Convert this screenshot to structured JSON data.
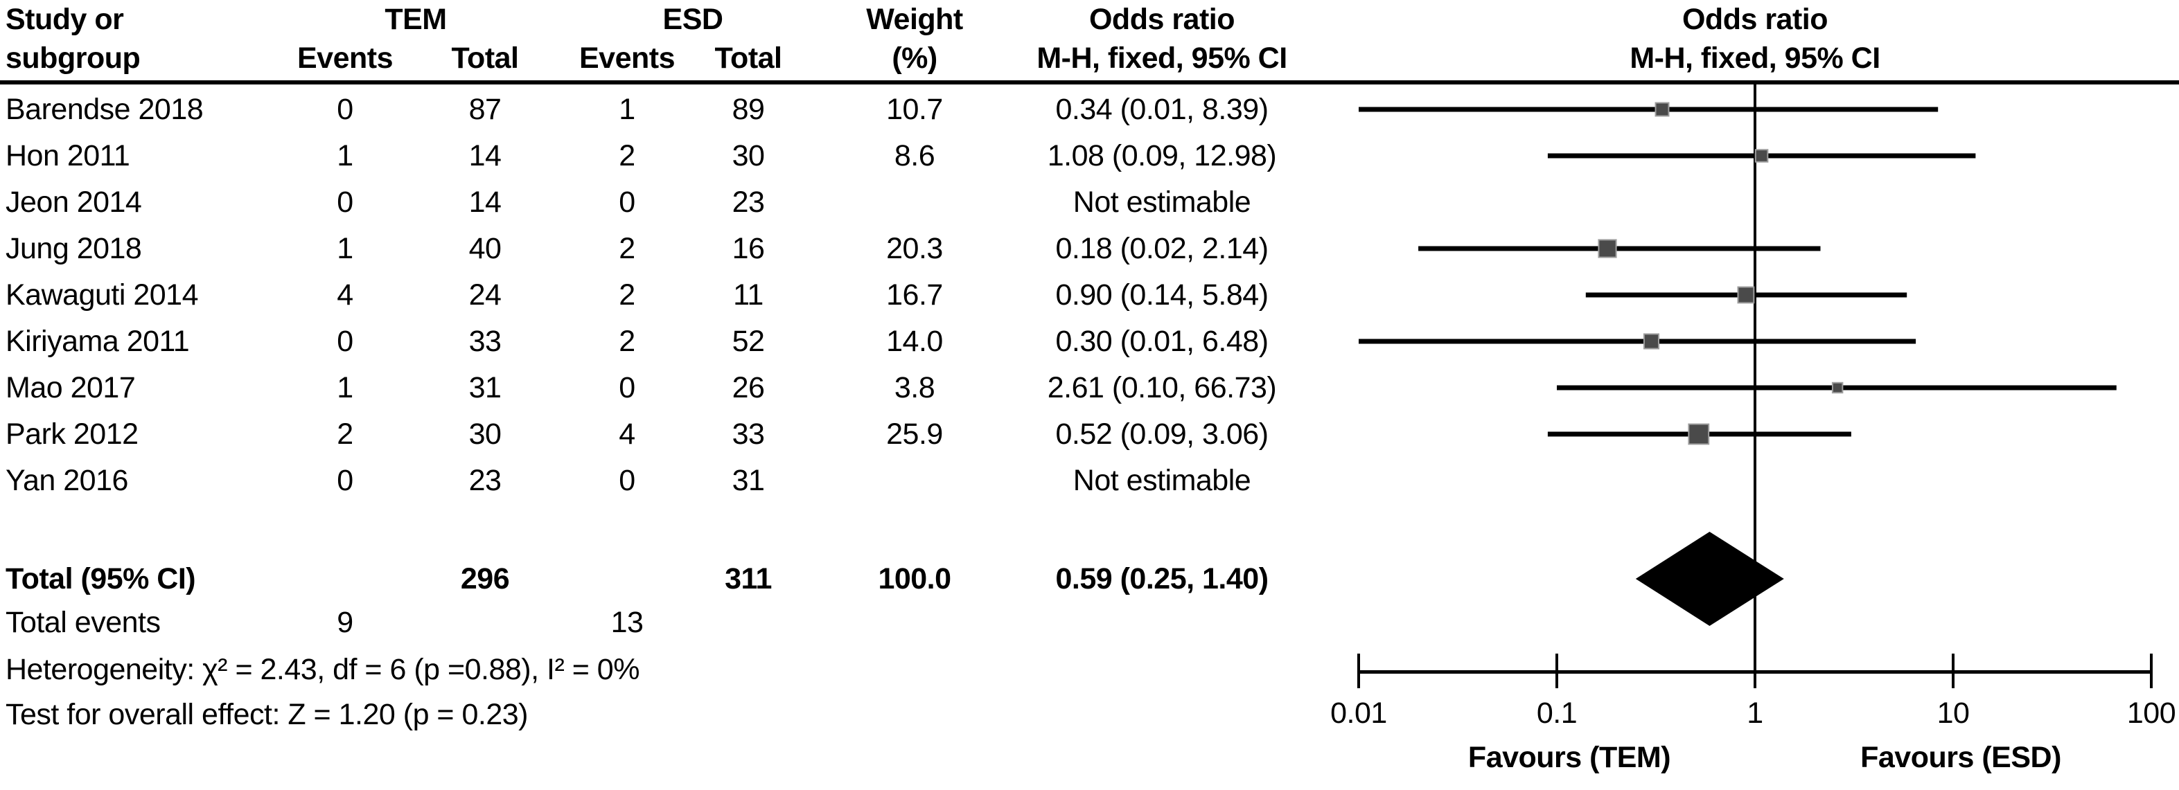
{
  "page": {
    "background": "#ffffff",
    "text_color": "#000000"
  },
  "header": {
    "study_line1": "Study or",
    "study_line2": "subgroup",
    "tem_label": "TEM",
    "esd_label": "ESD",
    "events_label": "Events",
    "total_label": "Total",
    "weight_line1": "Weight",
    "weight_line2": "(%)",
    "or_line1": "Odds ratio",
    "or_line2": "M-H, fixed, 95% CI",
    "plot_or_line1": "Odds ratio",
    "plot_or_line2": "M-H, fixed, 95% CI"
  },
  "chart_data": {
    "type": "forest",
    "effect_measure": "Odds ratio, M-H fixed, 95% CI",
    "x_scale": "log10",
    "x_range": [
      0.01,
      100
    ],
    "x_ticks": [
      "0.01",
      "0.1",
      "1",
      "10",
      "100"
    ],
    "favours_left": "Favours (TEM)",
    "favours_right": "Favours (ESD)",
    "marker_color": "#4a4a4a",
    "marker_edge_color": "#9e9e9e",
    "line_color": "#000000",
    "studies": [
      {
        "name": "Barendse 2018",
        "tem_events": "0",
        "tem_total": "87",
        "esd_events": "1",
        "esd_total": "89",
        "weight": "10.7",
        "weight_value": 10.7,
        "or_text": "0.34 (0.01, 8.39)",
        "or": 0.34,
        "ci_low": 0.01,
        "ci_high": 8.39,
        "estimable": true
      },
      {
        "name": "Hon 2011",
        "tem_events": "1",
        "tem_total": "14",
        "esd_events": "2",
        "esd_total": "30",
        "weight": "8.6",
        "weight_value": 8.6,
        "or_text": "1.08 (0.09, 12.98)",
        "or": 1.08,
        "ci_low": 0.09,
        "ci_high": 12.98,
        "estimable": true
      },
      {
        "name": "Jeon 2014",
        "tem_events": "0",
        "tem_total": "14",
        "esd_events": "0",
        "esd_total": "23",
        "weight": "",
        "weight_value": 0,
        "or_text": "Not estimable",
        "estimable": false
      },
      {
        "name": "Jung 2018",
        "tem_events": "1",
        "tem_total": "40",
        "esd_events": "2",
        "esd_total": "16",
        "weight": "20.3",
        "weight_value": 20.3,
        "or_text": "0.18 (0.02, 2.14)",
        "or": 0.18,
        "ci_low": 0.02,
        "ci_high": 2.14,
        "estimable": true
      },
      {
        "name": "Kawaguti 2014",
        "tem_events": "4",
        "tem_total": "24",
        "esd_events": "2",
        "esd_total": "11",
        "weight": "16.7",
        "weight_value": 16.7,
        "or_text": "0.90 (0.14, 5.84)",
        "or": 0.9,
        "ci_low": 0.14,
        "ci_high": 5.84,
        "estimable": true
      },
      {
        "name": "Kiriyama 2011",
        "tem_events": "0",
        "tem_total": "33",
        "esd_events": "2",
        "esd_total": "52",
        "weight": "14.0",
        "weight_value": 14.0,
        "or_text": "0.30 (0.01, 6.48)",
        "or": 0.3,
        "ci_low": 0.01,
        "ci_high": 6.48,
        "estimable": true
      },
      {
        "name": "Mao 2017",
        "tem_events": "1",
        "tem_total": "31",
        "esd_events": "0",
        "esd_total": "26",
        "weight": "3.8",
        "weight_value": 3.8,
        "or_text": "2.61 (0.10, 66.73)",
        "or": 2.61,
        "ci_low": 0.1,
        "ci_high": 66.73,
        "estimable": true
      },
      {
        "name": "Park 2012",
        "tem_events": "2",
        "tem_total": "30",
        "esd_events": "4",
        "esd_total": "33",
        "weight": "25.9",
        "weight_value": 25.9,
        "or_text": "0.52 (0.09, 3.06)",
        "or": 0.52,
        "ci_low": 0.09,
        "ci_high": 3.06,
        "estimable": true
      },
      {
        "name": "Yan 2016",
        "tem_events": "0",
        "tem_total": "23",
        "esd_events": "0",
        "esd_total": "31",
        "weight": "",
        "weight_value": 0,
        "or_text": "Not estimable",
        "estimable": false
      }
    ],
    "total": {
      "label": "Total (95% CI)",
      "tem_total": "296",
      "esd_total": "311",
      "weight": "100.0",
      "or_text": "0.59 (0.25, 1.40)",
      "or": 0.59,
      "ci_low": 0.25,
      "ci_high": 1.4
    }
  },
  "footer": {
    "total_events_label": "Total events",
    "tem_total_events": "9",
    "esd_total_events": "13",
    "heterogeneity": "Heterogeneity: χ² = 2.43, df = 6 (p =0.88), I² = 0%",
    "overall_effect": "Test for overall effect: Z = 1.20 (p = 0.23)"
  }
}
